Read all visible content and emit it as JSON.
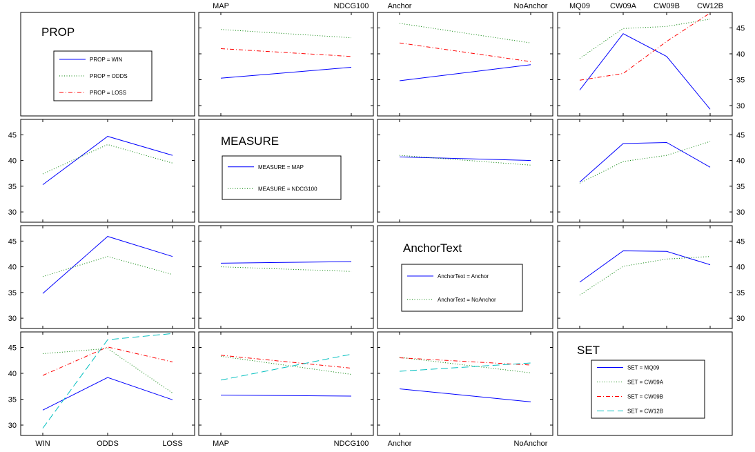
{
  "colors": {
    "series1": "#0000ff",
    "series2": "#008000",
    "series3": "#ff0000",
    "series4": "#00bfbf"
  },
  "line_styles": [
    "solid",
    "dotted",
    "dash-dot",
    "dashed"
  ],
  "factors": [
    {
      "name": "PROP",
      "levels": [
        "WIN",
        "ODDS",
        "LOSS"
      ]
    },
    {
      "name": "MEASURE",
      "levels": [
        "MAP",
        "NDCG100"
      ]
    },
    {
      "name": "AnchorText",
      "levels": [
        "Anchor",
        "NoAnchor"
      ]
    },
    {
      "name": "SET",
      "levels": [
        "MQ09",
        "CW09A",
        "CW09B",
        "CW12B"
      ]
    }
  ],
  "legends": [
    {
      "title": "PROP",
      "entries": [
        "PROP = WIN",
        "PROP = ODDS",
        "PROP = LOSS"
      ]
    },
    {
      "title": "MEASURE",
      "entries": [
        "MEASURE = MAP",
        "MEASURE = NDCG100"
      ]
    },
    {
      "title": "AnchorText",
      "entries": [
        "AnchorText = Anchor",
        "AnchorText = NoAnchor"
      ]
    },
    {
      "title": "SET",
      "entries": [
        "SET = MQ09",
        "SET = CW09A",
        "SET = CW09B",
        "SET = CW12B"
      ]
    }
  ],
  "chart_data": {
    "type": "line",
    "ylim": [
      28,
      48
    ],
    "yticks": [
      30,
      35,
      40,
      45
    ],
    "grid": false,
    "panels": [
      {
        "row": 0,
        "col": 1,
        "x_factor": "MEASURE",
        "trace_factor": "PROP",
        "series": [
          {
            "name": "PROP = WIN",
            "values": [
              35.3,
              37.4
            ]
          },
          {
            "name": "PROP = ODDS",
            "values": [
              44.7,
              43.1
            ]
          },
          {
            "name": "PROP = LOSS",
            "values": [
              41.0,
              39.5
            ]
          }
        ]
      },
      {
        "row": 0,
        "col": 2,
        "x_factor": "AnchorText",
        "trace_factor": "PROP",
        "series": [
          {
            "name": "PROP = WIN",
            "values": [
              34.8,
              37.9
            ]
          },
          {
            "name": "PROP = ODDS",
            "values": [
              45.9,
              42.1
            ]
          },
          {
            "name": "PROP = LOSS",
            "values": [
              42.1,
              38.5
            ]
          }
        ]
      },
      {
        "row": 0,
        "col": 3,
        "x_factor": "SET",
        "trace_factor": "PROP",
        "series": [
          {
            "name": "PROP = WIN",
            "values": [
              33.0,
              43.9,
              39.5,
              29.3
            ]
          },
          {
            "name": "PROP = ODDS",
            "values": [
              39.1,
              44.9,
              45.3,
              46.7
            ]
          },
          {
            "name": "PROP = LOSS",
            "values": [
              34.9,
              36.2,
              42.4,
              47.9
            ]
          }
        ]
      },
      {
        "row": 1,
        "col": 0,
        "x_factor": "PROP",
        "trace_factor": "MEASURE",
        "series": [
          {
            "name": "MEASURE = MAP",
            "values": [
              35.3,
              44.7,
              41.0
            ]
          },
          {
            "name": "MEASURE = NDCG100",
            "values": [
              37.4,
              43.1,
              39.5
            ]
          }
        ]
      },
      {
        "row": 1,
        "col": 2,
        "x_factor": "AnchorText",
        "trace_factor": "MEASURE",
        "series": [
          {
            "name": "MEASURE = MAP",
            "values": [
              40.7,
              40.0
            ]
          },
          {
            "name": "MEASURE = NDCG100",
            "values": [
              41.0,
              39.1
            ]
          }
        ]
      },
      {
        "row": 1,
        "col": 3,
        "x_factor": "SET",
        "trace_factor": "MEASURE",
        "series": [
          {
            "name": "MEASURE = MAP",
            "values": [
              35.8,
              43.3,
              43.5,
              38.7
            ]
          },
          {
            "name": "MEASURE = NDCG100",
            "values": [
              35.6,
              39.8,
              41.0,
              43.7
            ]
          }
        ]
      },
      {
        "row": 2,
        "col": 0,
        "x_factor": "PROP",
        "trace_factor": "AnchorText",
        "series": [
          {
            "name": "AnchorText = Anchor",
            "values": [
              34.8,
              45.9,
              42.0
            ]
          },
          {
            "name": "AnchorText = NoAnchor",
            "values": [
              38.1,
              42.0,
              38.5
            ]
          }
        ]
      },
      {
        "row": 2,
        "col": 1,
        "x_factor": "MEASURE",
        "trace_factor": "AnchorText",
        "series": [
          {
            "name": "AnchorText = Anchor",
            "values": [
              40.7,
              41.0
            ]
          },
          {
            "name": "AnchorText = NoAnchor",
            "values": [
              40.0,
              39.1
            ]
          }
        ]
      },
      {
        "row": 2,
        "col": 3,
        "x_factor": "SET",
        "trace_factor": "AnchorText",
        "series": [
          {
            "name": "AnchorText = Anchor",
            "values": [
              37.0,
              43.1,
              43.0,
              40.4
            ]
          },
          {
            "name": "AnchorText = NoAnchor",
            "values": [
              34.5,
              40.1,
              41.5,
              42.0
            ]
          }
        ]
      },
      {
        "row": 3,
        "col": 0,
        "x_factor": "PROP",
        "trace_factor": "SET",
        "series": [
          {
            "name": "SET = MQ09",
            "values": [
              32.9,
              39.2,
              34.9
            ]
          },
          {
            "name": "SET = CW09A",
            "values": [
              43.8,
              44.8,
              36.2
            ]
          },
          {
            "name": "SET = CW09B",
            "values": [
              39.6,
              45.1,
              42.2
            ]
          },
          {
            "name": "SET = CW12B",
            "values": [
              29.4,
              46.5,
              47.7
            ]
          }
        ]
      },
      {
        "row": 3,
        "col": 1,
        "x_factor": "MEASURE",
        "trace_factor": "SET",
        "series": [
          {
            "name": "SET = MQ09",
            "values": [
              35.8,
              35.6
            ]
          },
          {
            "name": "SET = CW09A",
            "values": [
              43.3,
              39.8
            ]
          },
          {
            "name": "SET = CW09B",
            "values": [
              43.5,
              41.0
            ]
          },
          {
            "name": "SET = CW12B",
            "values": [
              38.7,
              43.7
            ]
          }
        ]
      },
      {
        "row": 3,
        "col": 2,
        "x_factor": "AnchorText",
        "trace_factor": "SET",
        "series": [
          {
            "name": "SET = MQ09",
            "values": [
              37.0,
              34.5
            ]
          },
          {
            "name": "SET = CW09A",
            "values": [
              43.1,
              40.1
            ]
          },
          {
            "name": "SET = CW09B",
            "values": [
              43.0,
              41.6
            ]
          },
          {
            "name": "SET = CW12B",
            "values": [
              40.4,
              42.0
            ]
          }
        ]
      }
    ]
  }
}
